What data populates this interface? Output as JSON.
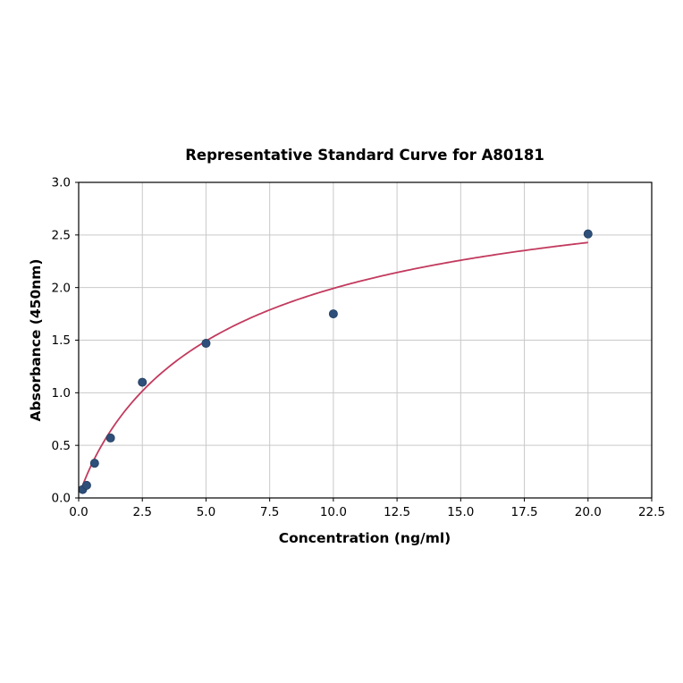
{
  "figure": {
    "background_color": "#ffffff"
  },
  "chart_data": {
    "type": "scatter",
    "title": "Representative Standard Curve for A80181",
    "xlabel": "Concentration (ng/ml)",
    "ylabel": "Absorbance (450nm)",
    "xlim": [
      0,
      22.5
    ],
    "ylim": [
      0,
      3.0
    ],
    "xticks": [
      0.0,
      2.5,
      5.0,
      7.5,
      10.0,
      12.5,
      15.0,
      17.5,
      20.0,
      22.5
    ],
    "xtick_labels": [
      "0.0",
      "2.5",
      "5.0",
      "7.5",
      "10.0",
      "12.5",
      "15.0",
      "17.5",
      "20.0",
      "22.5"
    ],
    "yticks": [
      0.0,
      0.5,
      1.0,
      1.5,
      2.0,
      2.5,
      3.0
    ],
    "ytick_labels": [
      "0.0",
      "0.5",
      "1.0",
      "1.5",
      "2.0",
      "2.5",
      "3.0"
    ],
    "grid": true,
    "legend": "none",
    "points": {
      "x": [
        0.156,
        0.313,
        0.625,
        1.25,
        2.5,
        5.0,
        10.0,
        20.0
      ],
      "y": [
        0.08,
        0.12,
        0.33,
        0.57,
        1.1,
        1.47,
        1.75,
        2.51
      ],
      "color": "#2e4f7a",
      "marker_radius": 4.6
    },
    "fit_curve": {
      "model": "four_parameter_logistic",
      "params": {
        "a": 0.0,
        "b": 0.9,
        "c": 6.0,
        "d": 3.25
      },
      "x_range": [
        0.12,
        20.0
      ],
      "color": "#c23a5e"
    }
  }
}
